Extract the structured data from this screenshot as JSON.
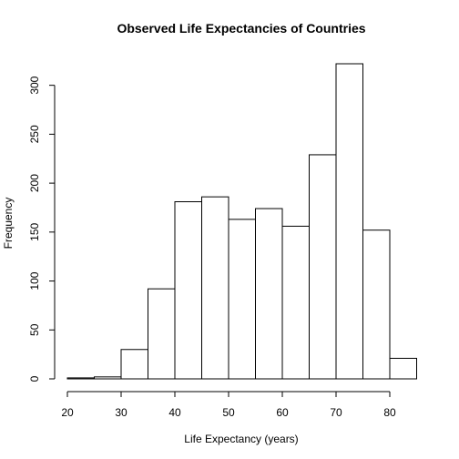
{
  "chart_data": {
    "type": "bar",
    "title": "Observed Life Expectancies of Countries",
    "xlabel": "Life Expectancy (years)",
    "ylabel": "Frequency",
    "bins": [
      [
        20,
        25
      ],
      [
        25,
        30
      ],
      [
        30,
        35
      ],
      [
        35,
        40
      ],
      [
        40,
        45
      ],
      [
        45,
        50
      ],
      [
        50,
        55
      ],
      [
        55,
        60
      ],
      [
        60,
        65
      ],
      [
        65,
        70
      ],
      [
        70,
        75
      ],
      [
        75,
        80
      ],
      [
        80,
        85
      ]
    ],
    "values": [
      1,
      2,
      30,
      92,
      181,
      186,
      163,
      174,
      156,
      229,
      322,
      152,
      21
    ],
    "xlim": [
      20,
      85
    ],
    "ylim": [
      0,
      322
    ],
    "xticks": [
      20,
      30,
      40,
      50,
      60,
      70,
      80
    ],
    "yticks": [
      0,
      50,
      100,
      150,
      200,
      250,
      300
    ],
    "grid": false,
    "legend": "none"
  }
}
